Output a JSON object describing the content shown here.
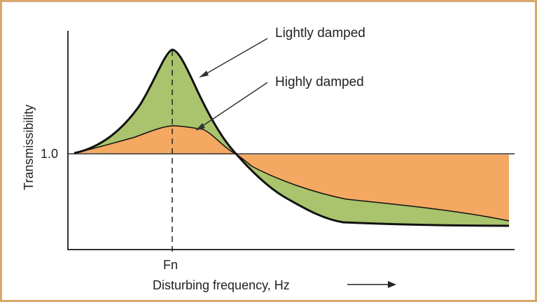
{
  "diagram": {
    "y_axis_label": "Transmissibility",
    "y_tick_label": "1.0",
    "x_tick_label": "Fn",
    "x_axis_label": "Disturbing frequency, Hz",
    "curves": {
      "lightly_damped": "Lightly damped",
      "highly_damped": "Highly damped"
    },
    "colors": {
      "frame": "#d9a66b",
      "lightly_fill": "#a9c46c",
      "highly_fill": "#f4a862",
      "curve_stroke": "#111111"
    }
  }
}
